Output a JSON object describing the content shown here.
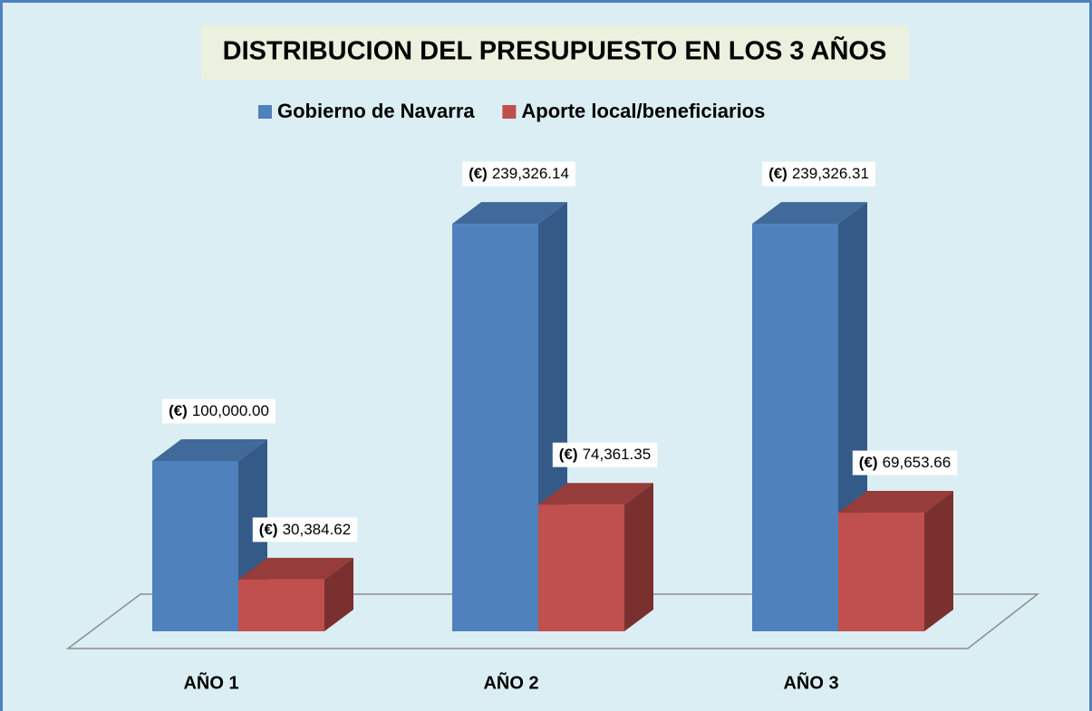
{
  "chart_data": {
    "type": "bar3d",
    "title": "DISTRIBUCION DEL PRESUPUESTO EN LOS 3 AÑOS",
    "categories": [
      "AÑO 1",
      "AÑO 2",
      "AÑO 3"
    ],
    "value_label_prefix": "(€)",
    "series": [
      {
        "name": "Gobierno de Navarra",
        "color": "#4f81bd",
        "top": "#41699a",
        "side": "#345a87",
        "values": [
          100000,
          239326.14,
          239326.31
        ],
        "value_labels": [
          "100,000.00",
          "239,326.14",
          "239,326.31"
        ]
      },
      {
        "name": "Aporte local/beneficiarios",
        "color": "#c0504d",
        "top": "#963c3a",
        "side": "#7a302e",
        "values": [
          30384.62,
          74361.35,
          69653.66
        ],
        "value_labels": [
          "30,384.62",
          "74,361.35",
          "69,653.66"
        ]
      }
    ],
    "legend": "top"
  }
}
